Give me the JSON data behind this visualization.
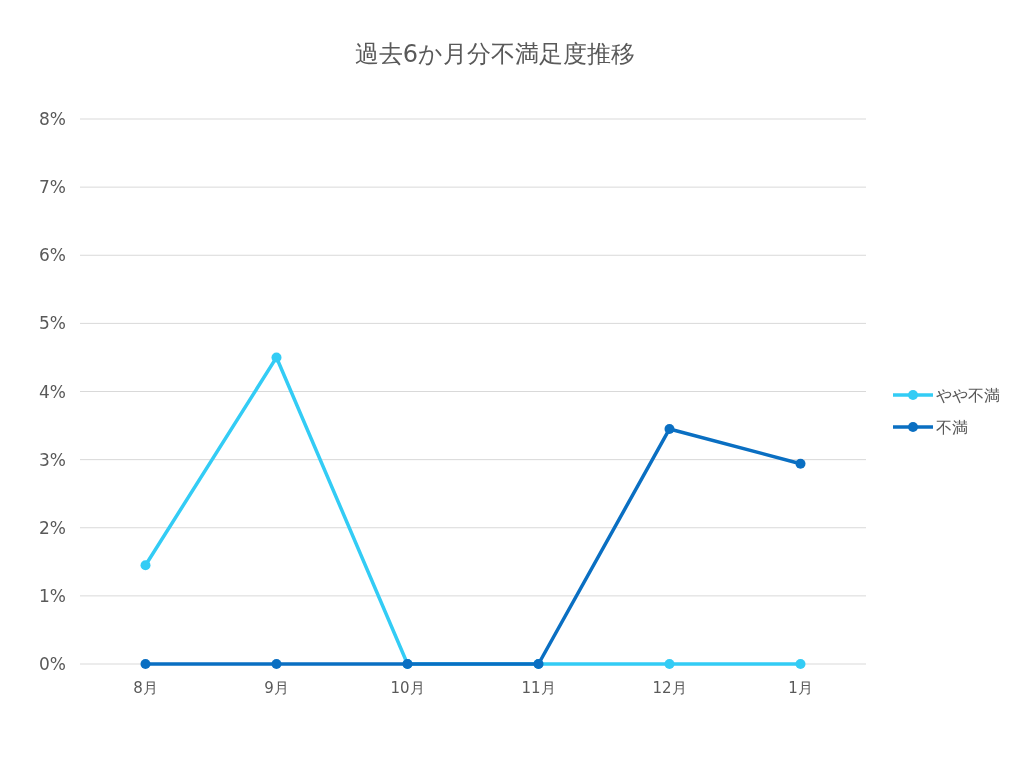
{
  "chart_data": {
    "type": "line",
    "title": "過去6か月分不満足度推移",
    "categories": [
      "8月",
      "9月",
      "10月",
      "11月",
      "12月",
      "1月"
    ],
    "series": [
      {
        "name": "やや不満",
        "color": "#33ccf5",
        "values": [
          1.45,
          4.5,
          0,
          0,
          0,
          0
        ]
      },
      {
        "name": "不満",
        "color": "#0a6fc2",
        "values": [
          0,
          0,
          0,
          0,
          3.45,
          2.94
        ]
      }
    ],
    "ylim": [
      0,
      8
    ],
    "yticks": [
      {
        "value": 0,
        "label": "0%"
      },
      {
        "value": 1,
        "label": "1%"
      },
      {
        "value": 2,
        "label": "2%"
      },
      {
        "value": 3,
        "label": "3%"
      },
      {
        "value": 4,
        "label": "4%"
      },
      {
        "value": 5,
        "label": "5%"
      },
      {
        "value": 6,
        "label": "6%"
      },
      {
        "value": 7,
        "label": "7%"
      },
      {
        "value": 8,
        "label": "8%"
      }
    ],
    "grid": "y",
    "legend": "right",
    "marker": "circle",
    "line_style": "solid"
  }
}
